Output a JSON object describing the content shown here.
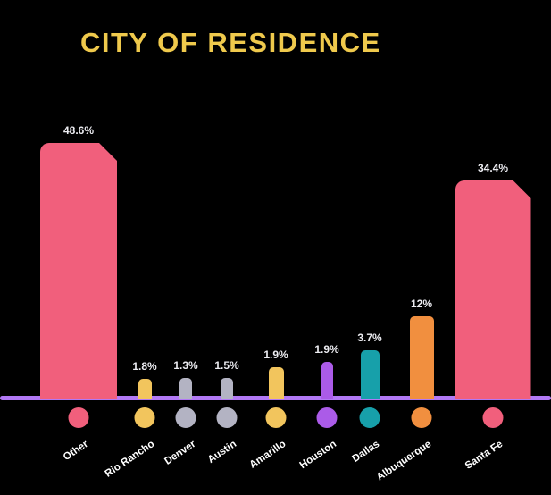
{
  "chart_data": {
    "type": "bar",
    "title": "CITY OF RESIDENCE",
    "title_color": "#EFC94C",
    "categories": [
      "Other",
      "Rio Rancho",
      "Denver",
      "Austin",
      "Amarillo",
      "Houston",
      "Dallas",
      "Albuquerque",
      "Santa Fe"
    ],
    "values": [
      48.6,
      1.8,
      1.3,
      1.5,
      1.9,
      1.9,
      3.7,
      12,
      34.4
    ],
    "value_labels": [
      "48.6%",
      "1.8%",
      "1.3%",
      "1.5%",
      "1.9%",
      "1.9%",
      "3.7%",
      "12%",
      "34.4%"
    ],
    "bar_colors": [
      "#F15F7C",
      "#F2C55D",
      "#B3B3C3",
      "#B3B3C3",
      "#F2C55D",
      "#AB5BE8",
      "#17A0AA",
      "#F18F3F",
      "#F15F7C"
    ],
    "axis_color": "#B279F5",
    "value_label_color": "#ECECF1",
    "category_label_color": "#FFFFFF",
    "background_color": "#000000",
    "ylim": [
      0,
      50
    ],
    "legend": "none",
    "grid": false,
    "layout": {
      "baseline_bottom": 108,
      "centers": [
        88,
        162,
        208,
        254,
        309,
        366,
        414,
        472,
        552
      ],
      "widths": [
        86,
        15,
        14,
        14,
        17,
        13,
        21,
        27,
        85
      ],
      "heights": [
        286,
        22,
        23,
        23,
        35,
        41,
        54,
        92,
        244
      ]
    }
  }
}
